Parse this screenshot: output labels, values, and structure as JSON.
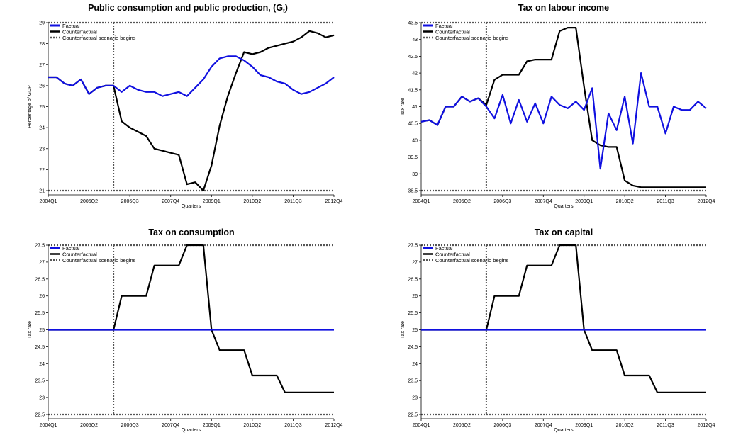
{
  "colors": {
    "factual": "#1010e0",
    "counterfactual": "#000000",
    "scenario": "#555555"
  },
  "chart_data": [
    {
      "type": "line",
      "title": "Public consumption and public production, (G",
      "title_sub": "t",
      "title_close": ")",
      "xlabel": "Quarters",
      "ylabel": "Percentage of GDP",
      "ylim": [
        21,
        29
      ],
      "yticks": [
        "29",
        "28",
        "27",
        "26",
        "25",
        "24",
        "23",
        "22",
        "21"
      ],
      "xlim": [
        0,
        35
      ],
      "xticks": [
        {
          "q": 0,
          "label": "2004Q1"
        },
        {
          "q": 5,
          "label": "2005Q2"
        },
        {
          "q": 10,
          "label": "2006Q3"
        },
        {
          "q": 15,
          "label": "2007Q4"
        },
        {
          "q": 20,
          "label": "2009Q1"
        },
        {
          "q": 25,
          "label": "2010Q2"
        },
        {
          "q": 30,
          "label": "2011Q3"
        },
        {
          "q": 35,
          "label": "2012Q4"
        }
      ],
      "legend": [
        "Factual",
        "Counterfactual",
        "Counterfactual scenario begins"
      ],
      "scenario_start": 8,
      "series": [
        {
          "name": "Factual",
          "values": [
            26.4,
            26.4,
            26.1,
            26.0,
            26.3,
            25.6,
            25.9,
            26.0,
            26.0,
            25.7,
            26.0,
            25.8,
            25.7,
            25.7,
            25.5,
            25.6,
            25.7,
            25.5,
            25.9,
            26.3,
            26.9,
            27.3,
            27.4,
            27.4,
            27.2,
            26.9,
            26.5,
            26.4,
            26.2,
            26.1,
            25.8,
            25.6,
            25.7,
            25.9,
            26.1,
            26.4
          ]
        },
        {
          "name": "Counterfactual",
          "values": [
            26.4,
            26.4,
            26.1,
            26.0,
            26.3,
            25.6,
            25.9,
            26.0,
            26.0,
            24.3,
            24.0,
            23.8,
            23.6,
            23.0,
            22.9,
            22.8,
            22.7,
            21.3,
            21.4,
            21.0,
            22.2,
            24.1,
            25.5,
            26.6,
            27.6,
            27.5,
            27.6,
            27.8,
            27.9,
            28.0,
            28.1,
            28.3,
            28.6,
            28.5,
            28.3,
            28.4
          ]
        }
      ]
    },
    {
      "type": "line",
      "title": "Tax on labour income",
      "xlabel": "Quarters",
      "ylabel": "Tax rate",
      "ylim": [
        38.5,
        43.5
      ],
      "yticks": [
        "43.5",
        "43",
        "42.5",
        "42",
        "41.5",
        "41",
        "40.5",
        "40",
        "39.5",
        "39",
        "38.5"
      ],
      "xlim": [
        0,
        35
      ],
      "xticks": [
        {
          "q": 0,
          "label": "2004Q1"
        },
        {
          "q": 5,
          "label": "2005Q2"
        },
        {
          "q": 10,
          "label": "2006Q3"
        },
        {
          "q": 15,
          "label": "2007Q4"
        },
        {
          "q": 20,
          "label": "2009Q1"
        },
        {
          "q": 25,
          "label": "2010Q2"
        },
        {
          "q": 30,
          "label": "2011Q3"
        },
        {
          "q": 35,
          "label": "2012Q4"
        }
      ],
      "legend": [
        "Factual",
        "Counterfactual",
        "Counterfactual scenario begins"
      ],
      "scenario_start": 8,
      "series": [
        {
          "name": "Factual",
          "values": [
            40.55,
            40.6,
            40.45,
            41.0,
            41.0,
            41.3,
            41.15,
            41.25,
            41.0,
            40.65,
            41.35,
            40.5,
            41.2,
            40.55,
            41.1,
            40.5,
            41.3,
            41.05,
            40.95,
            41.15,
            40.9,
            41.55,
            39.15,
            40.8,
            40.3,
            41.3,
            39.9,
            42.0,
            41.0,
            41.0,
            40.2,
            41.0,
            40.9,
            40.9,
            41.15,
            40.95
          ]
        },
        {
          "name": "Counterfactual",
          "values": [
            40.55,
            40.6,
            40.45,
            41.0,
            41.0,
            41.3,
            41.15,
            41.25,
            41.05,
            41.8,
            41.95,
            41.95,
            41.95,
            42.35,
            42.4,
            42.4,
            42.4,
            43.25,
            43.35,
            43.35,
            41.6,
            40.0,
            39.85,
            39.8,
            39.8,
            38.8,
            38.65,
            38.6,
            38.6,
            38.6,
            38.6,
            38.6,
            38.6,
            38.6,
            38.6,
            38.6
          ]
        }
      ]
    },
    {
      "type": "line",
      "title": "Tax on consumption",
      "xlabel": "Quarters",
      "ylabel": "Tax rate",
      "ylim": [
        22.5,
        27.5
      ],
      "yticks": [
        "27.5",
        "27",
        "26.5",
        "26",
        "25.5",
        "25",
        "24.5",
        "24",
        "23.5",
        "23",
        "22.5"
      ],
      "xlim": [
        0,
        35
      ],
      "xticks": [
        {
          "q": 0,
          "label": "2004Q1"
        },
        {
          "q": 5,
          "label": "2005Q2"
        },
        {
          "q": 10,
          "label": "2006Q3"
        },
        {
          "q": 15,
          "label": "2007Q4"
        },
        {
          "q": 20,
          "label": "2009Q1"
        },
        {
          "q": 25,
          "label": "2010Q2"
        },
        {
          "q": 30,
          "label": "2011Q3"
        },
        {
          "q": 35,
          "label": "2012Q4"
        }
      ],
      "legend": [
        "Factual",
        "Counterfactual",
        "Counterfactual scenario begins"
      ],
      "scenario_start": 8,
      "series": [
        {
          "name": "Factual",
          "values": [
            25,
            25,
            25,
            25,
            25,
            25,
            25,
            25,
            25,
            25,
            25,
            25,
            25,
            25,
            25,
            25,
            25,
            25,
            25,
            25,
            25,
            25,
            25,
            25,
            25,
            25,
            25,
            25,
            25,
            25,
            25,
            25,
            25,
            25,
            25,
            25
          ]
        },
        {
          "name": "Counterfactual",
          "values": [
            25,
            25,
            25,
            25,
            25,
            25,
            25,
            25,
            25,
            26,
            26,
            26,
            26,
            26.9,
            26.9,
            26.9,
            26.9,
            27.5,
            27.5,
            27.5,
            25,
            24.4,
            24.4,
            24.4,
            24.4,
            23.65,
            23.65,
            23.65,
            23.65,
            23.15,
            23.15,
            23.15,
            23.15,
            23.15,
            23.15,
            23.15
          ]
        }
      ]
    },
    {
      "type": "line",
      "title": "Tax on capital",
      "xlabel": "Quarters",
      "ylabel": "Tax rate",
      "ylim": [
        22.5,
        27.5
      ],
      "yticks": [
        "27.5",
        "27",
        "26.5",
        "26",
        "25.5",
        "25",
        "24.5",
        "24",
        "23.5",
        "23",
        "22.5"
      ],
      "xlim": [
        0,
        35
      ],
      "xticks": [
        {
          "q": 0,
          "label": "2004Q1"
        },
        {
          "q": 5,
          "label": "2005Q2"
        },
        {
          "q": 10,
          "label": "2006Q3"
        },
        {
          "q": 15,
          "label": "2007Q4"
        },
        {
          "q": 20,
          "label": "2009Q1"
        },
        {
          "q": 25,
          "label": "2010Q2"
        },
        {
          "q": 30,
          "label": "2011Q3"
        },
        {
          "q": 35,
          "label": "2012Q4"
        }
      ],
      "legend": [
        "Factual",
        "Counterfactual",
        "Counterfactual scenario begins"
      ],
      "scenario_start": 8,
      "series": [
        {
          "name": "Factual",
          "values": [
            25,
            25,
            25,
            25,
            25,
            25,
            25,
            25,
            25,
            25,
            25,
            25,
            25,
            25,
            25,
            25,
            25,
            25,
            25,
            25,
            25,
            25,
            25,
            25,
            25,
            25,
            25,
            25,
            25,
            25,
            25,
            25,
            25,
            25,
            25,
            25
          ]
        },
        {
          "name": "Counterfactual",
          "values": [
            25,
            25,
            25,
            25,
            25,
            25,
            25,
            25,
            25,
            26,
            26,
            26,
            26,
            26.9,
            26.9,
            26.9,
            26.9,
            27.5,
            27.5,
            27.5,
            25,
            24.4,
            24.4,
            24.4,
            24.4,
            23.65,
            23.65,
            23.65,
            23.65,
            23.15,
            23.15,
            23.15,
            23.15,
            23.15,
            23.15,
            23.15
          ]
        }
      ]
    }
  ]
}
